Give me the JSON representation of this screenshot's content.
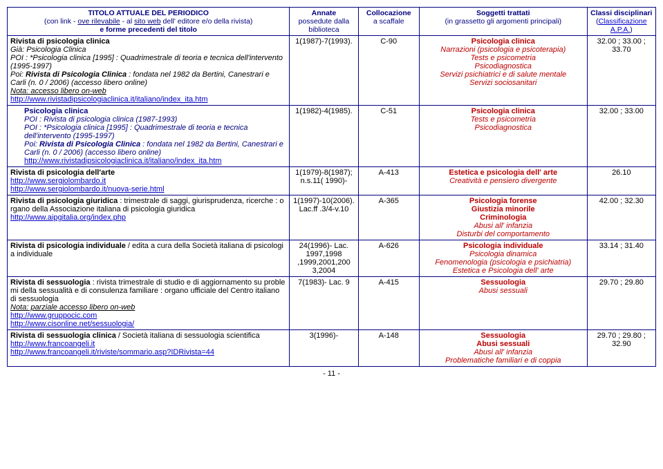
{
  "header": {
    "title_line1": "TITOLO ATTUALE DEL PERIODICO",
    "title_line2_pre": "(con link - ",
    "title_line2_ove": "ove rilevabile",
    "title_line2_mid": " - al ",
    "title_line2_sito": "sito web",
    "title_line2_post": " dell' editore e/o della rivista)",
    "title_line3": "e forme precedenti del titolo",
    "annate_line1": "Annate",
    "annate_line2": "possedute dalla",
    "annate_line3": "biblioteca",
    "coll_line1": "Collocazione",
    "coll_line2": "a scaffale",
    "sogg_line1": "Soggetti trattati",
    "sogg_line2": "(in grassetto gli argomenti principali)",
    "class_line1": "Classi disciplinari",
    "class_line2_pre": "(",
    "class_line2_link": "Classificazione A.P.A.",
    "class_line2_post": ")"
  },
  "rows": [
    {
      "title_html": "<span class='bold'>Rivista di psicologia clinica</span><br><span class='italic'>Già: Psicologia Clinica<br>POI : *Psicologia clinica [1995] : Quadrimestrale di teoria e tecnica dell'intervento (1995-1997)<br>Poi: <span class='bold'>Rivista di Psicologia Clinica</span> : fondata nel 1982 da Bertini, Canestrari e Carli (n. 0 / 2006) (accesso libero online)</span><br><span class='italic' style='text-decoration:underline'>Nota: accesso libero on-web</span><br><a class='link' href='#'>http://www.rivistadipsicologiaclinica.it/italiano/index_ita.htm</a>",
      "annate": "1(1987)-7(1993).",
      "coll": "C-90",
      "sogg_html": "<span class='bold red'>Psicologia clinica</span><br><span class='italic red'>Narrazioni (psicologia e psicoterapia)<br>Tests e psicometria<br>Psicodiagnostica<br>Servizi psichiatrici e di salute mentale<br>Servizi sociosanitari</span>",
      "class": "32.00 ; 33.00 ; 33.70"
    },
    {
      "title_html": "<div style='margin-left:20px'><span class='bold navy'>Psicologia clinica</span><br><span class='italic navy'>POI : Rivista di psicologia clinica (1987-1993)<br>POI : *Psicologia clinica [1995] : Quadrimestrale di teoria e tecnica dell'intervento (1995-1997)<br>Poi: <span class='bold'>Rivista di Psicologia Clinica</span> : fondata nel 1982 da Bertini, Canestrari e Carli (n. 0 / 2006) (accesso libero online)</span><br><a class='link' href='#'>http://www.rivistadipsicologiaclinica.it/italiano/index_ita.htm</a></div>",
      "annate": "1(1982)-4(1985).",
      "coll": "C-51",
      "sogg_html": "<span class='bold red'>Psicologia clinica</span><br><span class='italic red'>Tests e psicometria<br>Psicodiagnostica</span>",
      "class": "32.00 ; 33.00"
    },
    {
      "title_html": "<span class='bold'>Rivista di psicologia dell'arte</span><br><a class='link' href='#'>http://www.sergiolombardo.it</a><br><a class='link' href='#'>http://www.sergiolombardo.it/nuova-serie.html</a>",
      "annate": "1(1979)-8(1987); n.s.11( 1990)-",
      "coll": "A-413",
      "sogg_html": "<span class='bold red'>Estetica e psicologia dell' arte</span><br><span class='italic red'>Creatività e pensiero divergente</span>",
      "class": "26.10"
    },
    {
      "title_html": "<span class='bold'>Rivista di psicologia giuridica</span> : trimestrale di saggi, giurisprudenza, ricerche : o rgano della Associazione italiana di psicologia giuridica<br><a class='link' href='#'>http://www.aipgitalia.org/index.php</a>",
      "annate": "1(1997)-10(2006). Lac.ff .3/4-v.10",
      "coll": "A-365",
      "sogg_html": "<span class='bold red'>Psicologia forense<br>Giustizia minorile<br>Criminologia</span><br><span class='italic red'>Abusi all' infanzia<br>Disturbi del comportamento</span>",
      "class": "42.00 ; 32.30"
    },
    {
      "title_html": "<span class='bold'>Rivista di psicologia individuale</span> / edita a cura della Società italiana di psicologi a individuale",
      "annate": "24(1996)- Lac. 1997,1998 ,1999,2001,200 3,2004",
      "coll": "A-626",
      "sogg_html": "<span class='bold red'>Psicologia individuale</span><br><span class='italic red'>Psicologia dinamica<br>Fenomenologia (psicologia e psichiatria)<br>Estetica e Psicologia dell' arte</span>",
      "class": "33.14 ; 31.40"
    },
    {
      "title_html": "<span class='bold'>Rivista di sessuologia</span> : rivista trimestrale di studio e di aggiornamento su proble mi della sessualità e di consulenza familiare : organo ufficiale del Centro italiano di sessuologia<br><span class='italic' style='text-decoration:underline'>Nota: parziale accesso libero on-web</span><br><a class='link' href='#'>http://www.gruppocic.com</a><br><a class='link' href='#'>http://www.cisonline.net/sessuologia/</a>",
      "annate": "7(1983)- Lac. 9",
      "coll": "A-415",
      "sogg_html": "<span class='bold red'>Sessuologia</span><br><span class='italic red'>Abusi sessuali</span>",
      "class": "29.70 ; 29.80"
    },
    {
      "title_html": "<span class='bold'>Rivista di sessuologia clinica</span> / Società italiana di sessuologia scientifica<br><a class='link' href='#'>http://www.francoangeli.it</a><br><a class='link' href='#'>http://www.francoangeli.it/riviste/sommario.asp?IDRivista=44</a>",
      "annate": "3(1996)-",
      "coll": "A-148",
      "sogg_html": "<span class='bold red'>Sessuologia<br>Abusi sessuali</span><br><span class='italic red'>Abusi all' infanzia<br>Problematiche familiari e di coppia</span>",
      "class": "29.70 ; 29.80 ; 32.90"
    }
  ],
  "page_number": "- 11 -"
}
